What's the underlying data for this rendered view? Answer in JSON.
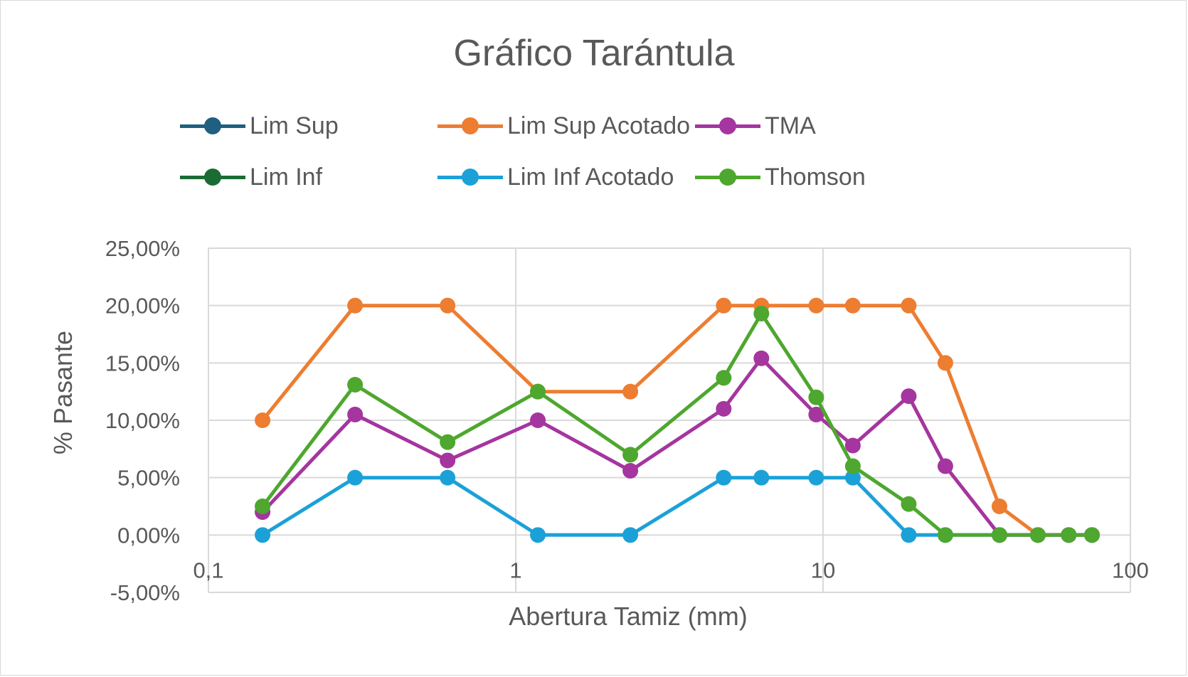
{
  "chart_data": {
    "type": "line",
    "title": "Gráfico Tarántula",
    "xlabel": "Abertura Tamiz (mm)",
    "ylabel": "% Pasante",
    "x_scale": "log",
    "xlim": [
      0.1,
      100
    ],
    "ylim": [
      -5,
      25
    ],
    "x_tick_values": [
      0.1,
      1,
      10,
      100
    ],
    "x_tick_labels": [
      "0,1",
      "1",
      "10",
      "100"
    ],
    "y_tick_values": [
      -5,
      0,
      5,
      10,
      15,
      20,
      25
    ],
    "y_tick_labels": [
      "-5,00%",
      "0,00%",
      "5,00%",
      "10,00%",
      "15,00%",
      "20,00%",
      "25,00%"
    ],
    "grid": true,
    "legend_position": "top",
    "series": [
      {
        "name": "Lim Sup",
        "color": "#1f5f7f",
        "points": []
      },
      {
        "name": "Lim Sup Acotado",
        "color": "#ed7d31",
        "points": [
          [
            0.15,
            10
          ],
          [
            0.3,
            20
          ],
          [
            0.6,
            20
          ],
          [
            1.18,
            12.5
          ],
          [
            2.36,
            12.5
          ],
          [
            4.75,
            20
          ],
          [
            6.3,
            20
          ],
          [
            9.5,
            20
          ],
          [
            12.5,
            20
          ],
          [
            19,
            20
          ],
          [
            25,
            15
          ],
          [
            37.5,
            2.5
          ],
          [
            50,
            0
          ],
          [
            63,
            0
          ],
          [
            75,
            0
          ]
        ]
      },
      {
        "name": "TMA",
        "color": "#a5359f",
        "points": [
          [
            0.15,
            2
          ],
          [
            0.3,
            10.5
          ],
          [
            0.6,
            6.5
          ],
          [
            1.18,
            10
          ],
          [
            2.36,
            5.6
          ],
          [
            4.75,
            11
          ],
          [
            6.3,
            15.4
          ],
          [
            9.5,
            10.5
          ],
          [
            12.5,
            7.8
          ],
          [
            19,
            12.1
          ],
          [
            25,
            6
          ],
          [
            37.5,
            0
          ],
          [
            50,
            0
          ],
          [
            63,
            0
          ],
          [
            75,
            0
          ]
        ]
      },
      {
        "name": "Lim Inf",
        "color": "#1b6b34",
        "points": []
      },
      {
        "name": "Lim Inf Acotado",
        "color": "#1ba1d8",
        "points": [
          [
            0.15,
            0
          ],
          [
            0.3,
            5
          ],
          [
            0.6,
            5
          ],
          [
            1.18,
            0
          ],
          [
            2.36,
            0
          ],
          [
            4.75,
            5
          ],
          [
            6.3,
            5
          ],
          [
            9.5,
            5
          ],
          [
            12.5,
            5
          ],
          [
            19,
            0
          ],
          [
            25,
            0
          ],
          [
            37.5,
            0
          ],
          [
            50,
            0
          ],
          [
            63,
            0
          ],
          [
            75,
            0
          ]
        ]
      },
      {
        "name": "Thomson",
        "color": "#4ea72e",
        "points": [
          [
            0.15,
            2.5
          ],
          [
            0.3,
            13.1
          ],
          [
            0.6,
            8.1
          ],
          [
            1.18,
            12.5
          ],
          [
            2.36,
            7
          ],
          [
            4.75,
            13.7
          ],
          [
            6.3,
            19.3
          ],
          [
            9.5,
            12
          ],
          [
            12.5,
            6
          ],
          [
            19,
            2.7
          ],
          [
            25,
            0
          ],
          [
            37.5,
            0
          ],
          [
            50,
            0
          ],
          [
            63,
            0
          ],
          [
            75,
            0
          ]
        ]
      }
    ]
  }
}
